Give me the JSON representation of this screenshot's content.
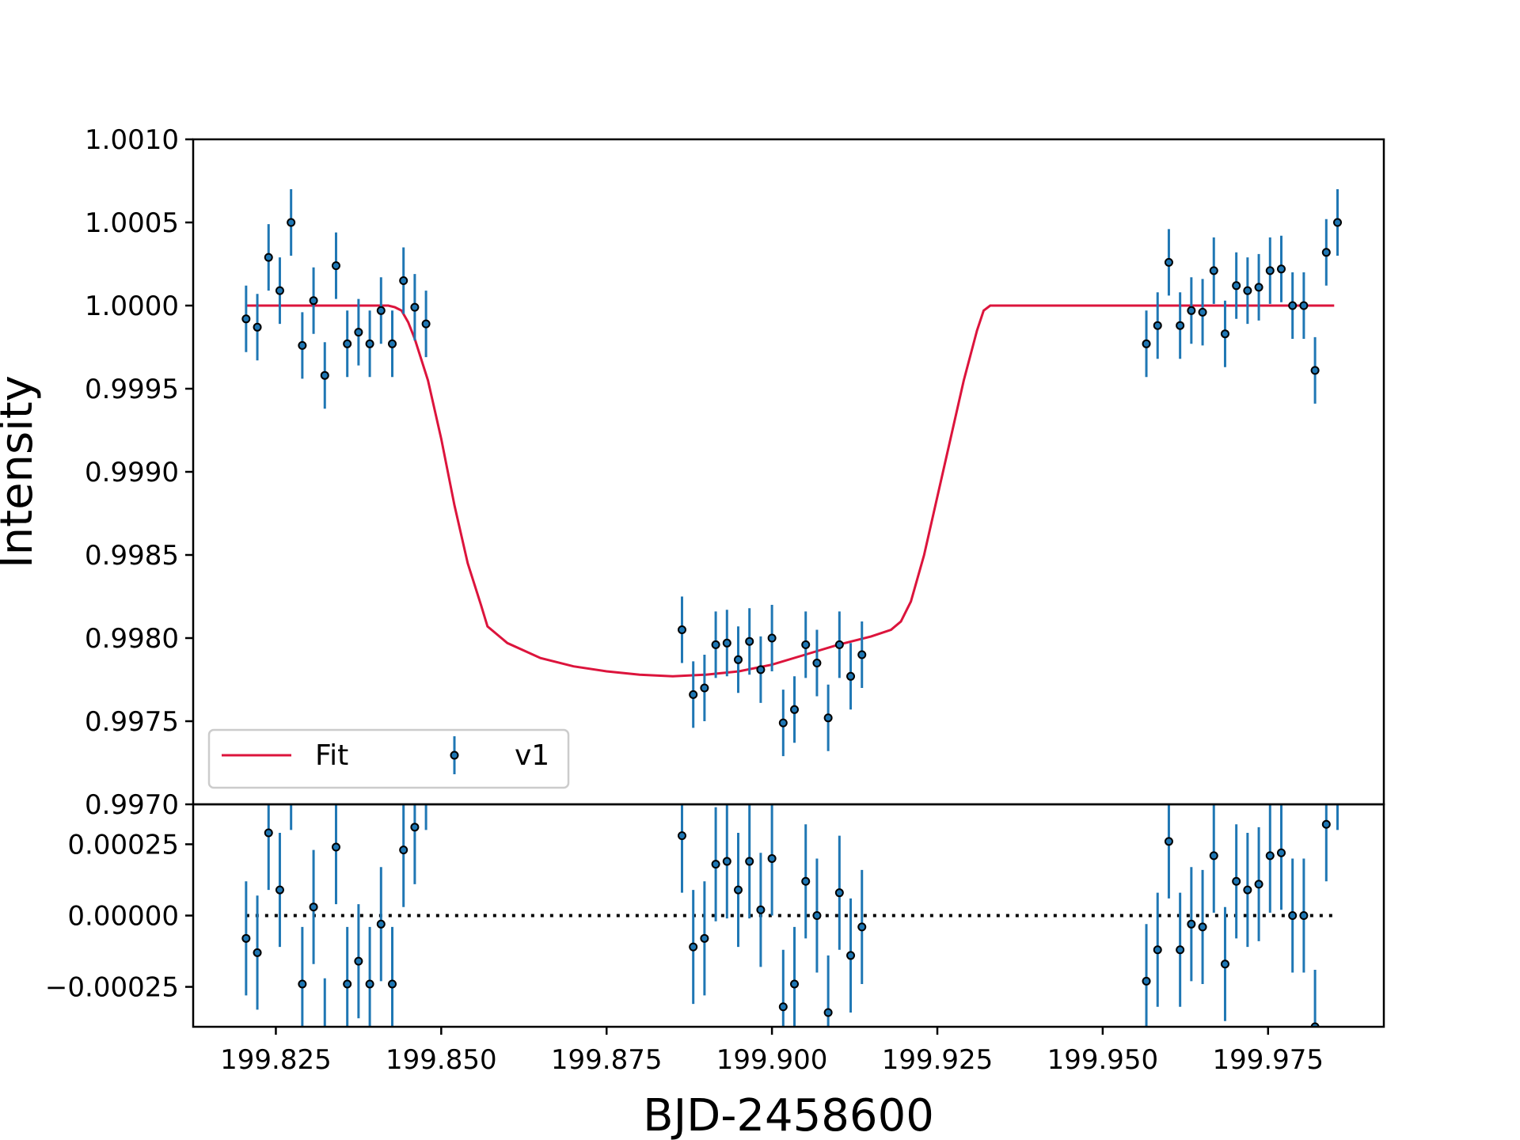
{
  "chart_data": {
    "type": "scatter",
    "xlabel": "BJD-2458600",
    "ylabel": "Intensity",
    "xlim": [
      199.8125,
      199.9925
    ],
    "xticks": [
      199.825,
      199.85,
      199.875,
      199.9,
      199.925,
      199.95,
      199.975
    ],
    "xtick_labels": [
      "199.825",
      "199.850",
      "199.875",
      "199.900",
      "199.925",
      "199.950",
      "199.975"
    ],
    "panels": {
      "main": {
        "ylim": [
          0.997,
          1.001
        ],
        "yticks": [
          0.997,
          0.9975,
          0.998,
          0.9985,
          0.999,
          0.9995,
          1.0,
          1.0005,
          1.001
        ],
        "ytick_labels": [
          "0.9970",
          "0.9975",
          "0.9980",
          "0.9985",
          "0.9990",
          "0.9995",
          "1.0000",
          "1.0005",
          "1.0010"
        ]
      },
      "residuals": {
        "ylim": [
          -0.00039,
          0.00039
        ],
        "yticks": [
          -0.00025,
          0.0,
          0.00025
        ],
        "ytick_labels": [
          "−0.00025",
          "0.00000",
          "0.00025"
        ],
        "zero_line": {
          "style": "dotted",
          "color": "#000000"
        }
      }
    },
    "legend": {
      "placement": "lower-left",
      "entries": [
        {
          "label": "Fit",
          "kind": "line",
          "color": "#DC143C"
        },
        {
          "label": "v1",
          "kind": "errorbar",
          "color": "#1f77b4"
        }
      ]
    },
    "series": [
      {
        "name": "Fit",
        "kind": "line",
        "color": "#DC143C",
        "x": [
          199.8205,
          199.842,
          199.843,
          199.844,
          199.845,
          199.846,
          199.848,
          199.85,
          199.852,
          199.854,
          199.856,
          199.857,
          199.86,
          199.865,
          199.87,
          199.875,
          199.88,
          199.885,
          199.89,
          199.895,
          199.9,
          199.905,
          199.91,
          199.915,
          199.918,
          199.9195,
          199.921,
          199.923,
          199.925,
          199.927,
          199.929,
          199.931,
          199.932,
          199.933,
          199.985
        ],
        "y": [
          1.0,
          1.0,
          0.99999,
          0.99997,
          0.9999,
          0.9998,
          0.99955,
          0.9992,
          0.9988,
          0.99845,
          0.9982,
          0.99807,
          0.99797,
          0.99788,
          0.99783,
          0.9978,
          0.99778,
          0.99777,
          0.99778,
          0.9978,
          0.99784,
          0.9979,
          0.99796,
          0.99801,
          0.99805,
          0.9981,
          0.99822,
          0.9985,
          0.99885,
          0.9992,
          0.99955,
          0.99985,
          0.99997,
          1.0,
          1.0
        ]
      },
      {
        "name": "v1",
        "kind": "errorbar",
        "color": "#1f77b4",
        "marker_edge": "#000000",
        "x": [
          199.8205,
          199.8222,
          199.8239,
          199.8256,
          199.8273,
          199.829,
          199.8307,
          199.8324,
          199.8341,
          199.8358,
          199.8375,
          199.8392,
          199.8409,
          199.8426,
          199.8443,
          199.846,
          199.8477,
          199.8864,
          199.8881,
          199.8898,
          199.8915,
          199.8932,
          199.8949,
          199.8966,
          199.8983,
          199.9,
          199.9017,
          199.9034,
          199.9051,
          199.9068,
          199.9085,
          199.9102,
          199.9119,
          199.9136,
          199.9566,
          199.9583,
          199.96,
          199.9617,
          199.9634,
          199.9651,
          199.9668,
          199.9685,
          199.9702,
          199.9719,
          199.9736,
          199.9753,
          199.977,
          199.9787,
          199.9804,
          199.9821,
          199.9838,
          199.9855
        ],
        "y": [
          0.99992,
          0.99987,
          1.00029,
          1.00009,
          1.0005,
          0.99976,
          1.00003,
          0.99958,
          1.00024,
          0.99977,
          0.99984,
          0.99977,
          0.99997,
          0.99977,
          1.00015,
          0.99999,
          0.99989,
          0.99805,
          0.99766,
          0.9977,
          0.99796,
          0.99797,
          0.99787,
          0.99798,
          0.99781,
          0.998,
          0.99749,
          0.99757,
          0.99796,
          0.99785,
          0.99752,
          0.99796,
          0.99777,
          0.9979,
          0.99977,
          0.99988,
          1.00026,
          0.99988,
          0.99997,
          0.99996,
          1.00021,
          0.99983,
          1.00012,
          1.00009,
          1.00011,
          1.00021,
          1.00022,
          1.0,
          1.0,
          0.99961,
          1.00032,
          1.0005
        ],
        "yerr": 0.0002,
        "residuals": [
          -8e-05,
          -0.00013,
          0.00029,
          9e-05,
          0.0005,
          -0.00024,
          3e-05,
          -0.00042,
          0.00024,
          -0.00024,
          -0.00016,
          -0.00024,
          -3e-05,
          -0.00024,
          0.00023,
          0.00031,
          0.0005,
          0.00028,
          -0.00011,
          -8e-05,
          0.00018,
          0.00019,
          9e-05,
          0.00019,
          2e-05,
          0.0002,
          -0.00032,
          -0.00024,
          0.00012,
          0.0,
          -0.00034,
          8e-05,
          -0.00014,
          -4e-05,
          -0.00023,
          -0.00012,
          0.00026,
          -0.00012,
          -3e-05,
          -4e-05,
          0.00021,
          -0.00017,
          0.00012,
          9e-05,
          0.00011,
          0.00021,
          0.00022,
          0.0,
          0.0,
          -0.00039,
          0.00032,
          0.0005
        ]
      }
    ]
  }
}
